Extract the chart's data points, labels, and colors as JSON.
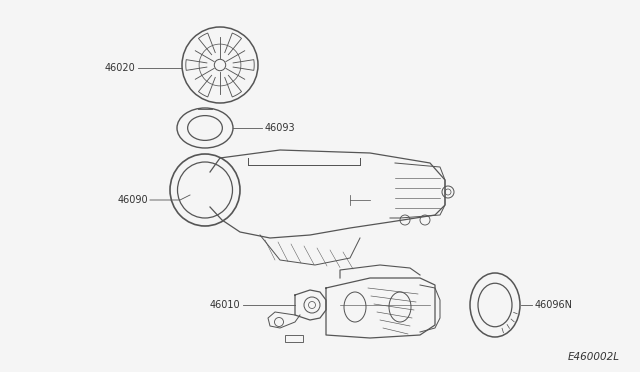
{
  "bg_color": "#f5f5f5",
  "line_color": "#555555",
  "label_color": "#333333",
  "diagram_code": "E460002L",
  "parts": [
    "46020",
    "46093",
    "46090",
    "46010",
    "46096N"
  ]
}
